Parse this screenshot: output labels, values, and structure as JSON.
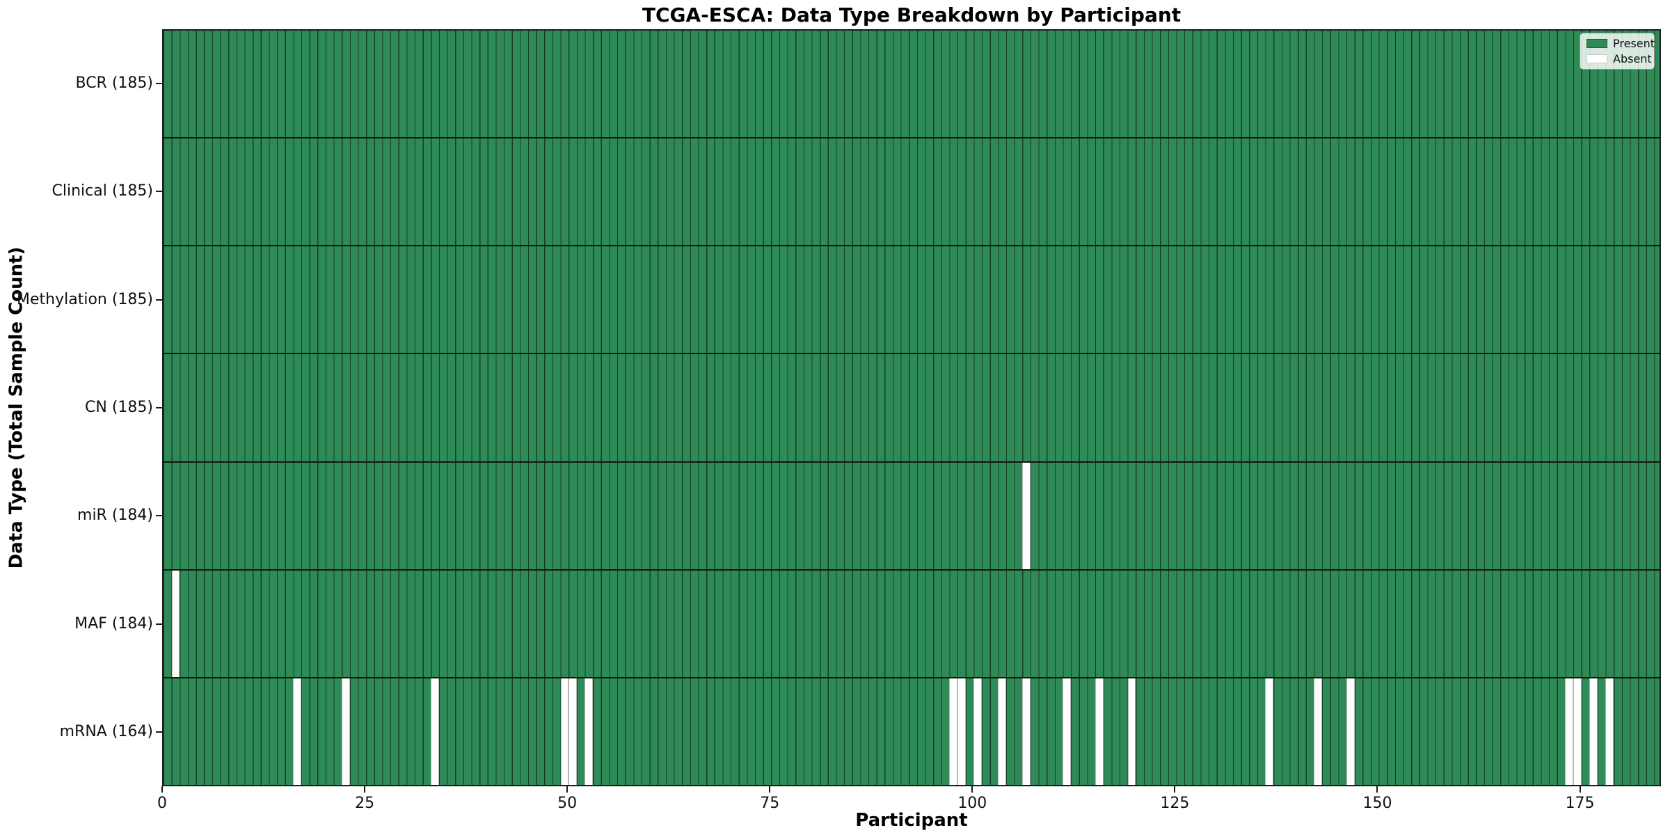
{
  "chart_data": {
    "type": "heatmap",
    "title": "TCGA-ESCA: Data Type Breakdown by Participant",
    "xlabel": "Participant",
    "ylabel": "Data Type (Total Sample Count)",
    "x_range": [
      0,
      185
    ],
    "n_participants": 185,
    "x_ticks": [
      0,
      25,
      50,
      75,
      100,
      125,
      150,
      175
    ],
    "grid": "per-participant vertical cell edges",
    "legend_position": "upper right",
    "legend_entries": [
      {
        "label": "Present",
        "color": "#2e8b57"
      },
      {
        "label": "Absent",
        "color": "#ffffff"
      }
    ],
    "colors": {
      "present": "#2e8b57",
      "absent": "#ffffff",
      "cell_edge": "rgba(0,0,0,0.55)",
      "spine": "#1a1a1a"
    },
    "rows": [
      {
        "label": "BCR (185)",
        "data_type": "BCR",
        "total": 185,
        "absent_participants": []
      },
      {
        "label": "Clinical (185)",
        "data_type": "Clinical",
        "total": 185,
        "absent_participants": []
      },
      {
        "label": "Methylation (185)",
        "data_type": "Methylation",
        "total": 185,
        "absent_participants": []
      },
      {
        "label": "CN (185)",
        "data_type": "CN",
        "total": 185,
        "absent_participants": []
      },
      {
        "label": "miR (184)",
        "data_type": "miR",
        "total": 184,
        "absent_participants": [
          106
        ]
      },
      {
        "label": "MAF (184)",
        "data_type": "MAF",
        "total": 184,
        "absent_participants": [
          1
        ]
      },
      {
        "label": "mRNA (164)",
        "data_type": "mRNA",
        "total": 164,
        "absent_participants": [
          16,
          22,
          33,
          49,
          50,
          52,
          97,
          98,
          100,
          103,
          106,
          111,
          115,
          119,
          136,
          142,
          146,
          173,
          174,
          176,
          178
        ]
      }
    ]
  }
}
